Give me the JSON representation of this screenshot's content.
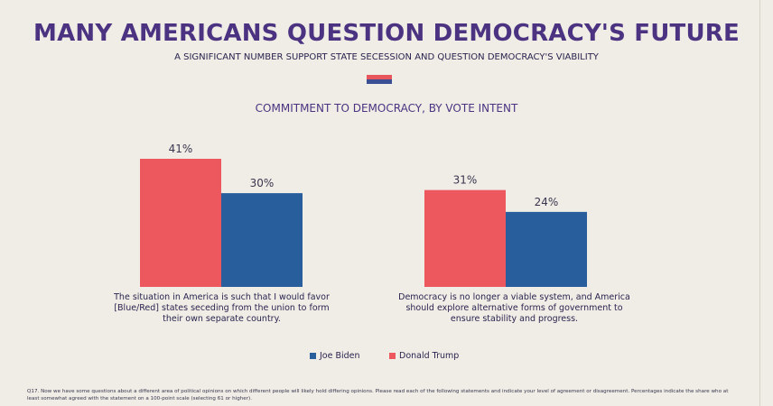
{
  "header": {
    "title": "MANY AMERICANS QUESTION DEMOCRACY'S FUTURE",
    "subtitle": "A SIGNIFICANT NUMBER SUPPORT STATE SECESSION AND QUESTION DEMOCRACY'S VIABILITY"
  },
  "chart_data": {
    "type": "bar",
    "title": "COMMITMENT TO DEMOCRACY, BY VOTE INTENT",
    "categories": [
      "The situation in America is such that I would favor [Blue/Red] states seceding from the union to form their own separate country.",
      "Democracy is no longer a viable system, and America should explore alternative forms of government to ensure stability and progress."
    ],
    "series": [
      {
        "name": "Donald Trump",
        "values": [
          41,
          31
        ],
        "labels": [
          "41%",
          "31%"
        ],
        "color": "#ec585e"
      },
      {
        "name": "Joe Biden",
        "values": [
          30,
          24
        ],
        "labels": [
          "30%",
          "24%"
        ],
        "color": "#285e9c"
      }
    ],
    "ylim": [
      0,
      41
    ],
    "legend_position": "bottom",
    "grid": false
  },
  "legend": {
    "items": [
      {
        "label": "Joe Biden",
        "color": "#285e9c"
      },
      {
        "label": "Donald Trump",
        "color": "#ec585e"
      }
    ]
  },
  "footnote": "Q17. Now we have some questions about a different area of political opinions on which different people will likely hold differing opinions. Please read each of the following statements and indicate your level of agreement or disagreement. Percentages indicate the share who at least somewhat agreed with the statement on a 100-point scale (selecting 61 or higher)."
}
